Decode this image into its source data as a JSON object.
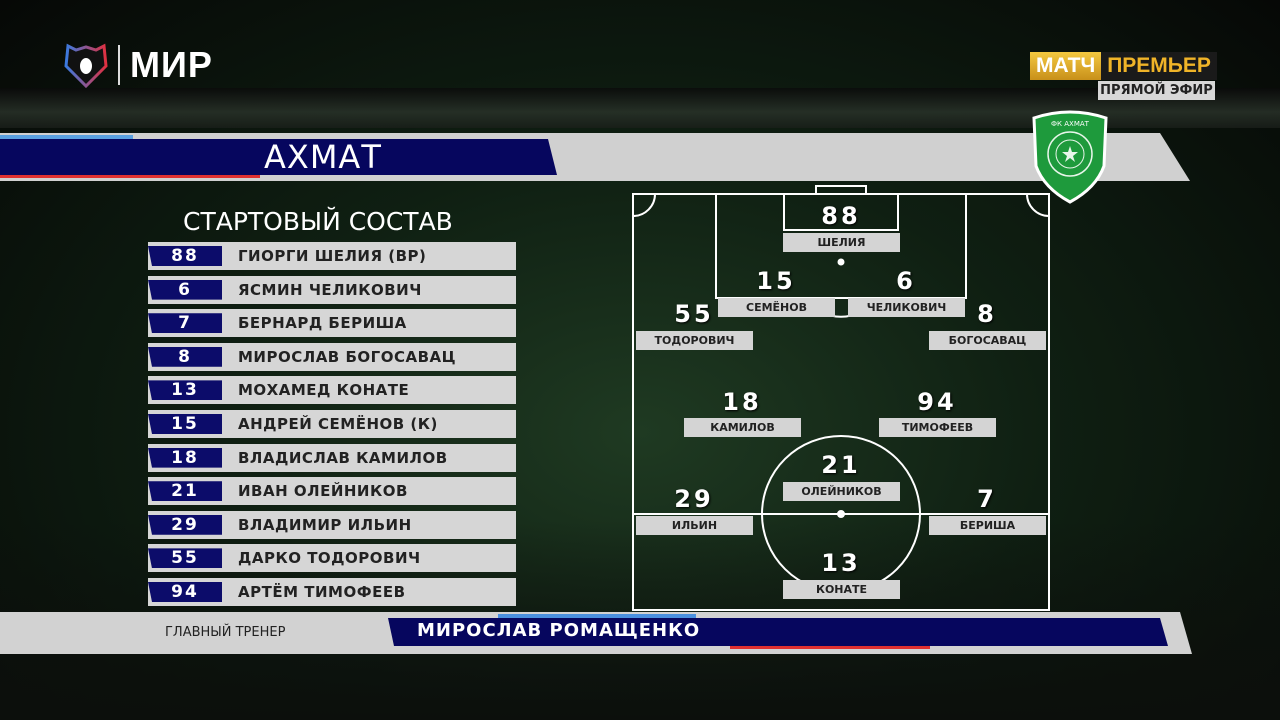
{
  "broadcaster": {
    "logo_text": "МИР",
    "channel_a": "МАТЧ",
    "channel_b": "ПРЕМЬЕР",
    "live_label": "ПРЯМОЙ ЭФИР"
  },
  "team": {
    "name": "АХМАТ",
    "badge_text": "ФК АХМАТ",
    "accent": "#06065e",
    "badge_color": "#1e9a3c"
  },
  "lineup": {
    "title": "СТАРТОВЫЙ СОСТАВ",
    "players": [
      {
        "number": "88",
        "name": "ГИОРГИ ШЕЛИЯ (ВР)"
      },
      {
        "number": "6",
        "name": "ЯСМИН ЧЕЛИКОВИЧ"
      },
      {
        "number": "7",
        "name": "БЕРНАРД БЕРИША"
      },
      {
        "number": "8",
        "name": "МИРОСЛАВ БОГОСАВАЦ"
      },
      {
        "number": "13",
        "name": "МОХАМЕД КОНАТЕ"
      },
      {
        "number": "15",
        "name": "АНДРЕЙ СЕМЁНОВ (К)"
      },
      {
        "number": "18",
        "name": "ВЛАДИСЛАВ КАМИЛОВ"
      },
      {
        "number": "21",
        "name": "ИВАН ОЛЕЙНИКОВ"
      },
      {
        "number": "29",
        "name": "ВЛАДИМИР ИЛЬИН"
      },
      {
        "number": "55",
        "name": "ДАРКО ТОДОРОВИЧ"
      },
      {
        "number": "94",
        "name": "АРТЁМ ТИМОФЕЕВ"
      }
    ]
  },
  "formation": [
    {
      "number": "88",
      "name": "ШЕЛИЯ"
    },
    {
      "number": "15",
      "name": "СЕМЁНОВ"
    },
    {
      "number": "6",
      "name": "ЧЕЛИКОВИЧ"
    },
    {
      "number": "55",
      "name": "ТОДОРОВИЧ"
    },
    {
      "number": "8",
      "name": "БОГОСАВАЦ"
    },
    {
      "number": "18",
      "name": "КАМИЛОВ"
    },
    {
      "number": "94",
      "name": "ТИМОФЕЕВ"
    },
    {
      "number": "21",
      "name": "ОЛЕЙНИКОВ"
    },
    {
      "number": "29",
      "name": "ИЛЬИН"
    },
    {
      "number": "7",
      "name": "БЕРИША"
    },
    {
      "number": "13",
      "name": "КОНАТЕ"
    }
  ],
  "coach": {
    "label": "ГЛАВНЫЙ ТРЕНЕР",
    "name": "МИРОСЛАВ РОМАЩЕНКО"
  }
}
